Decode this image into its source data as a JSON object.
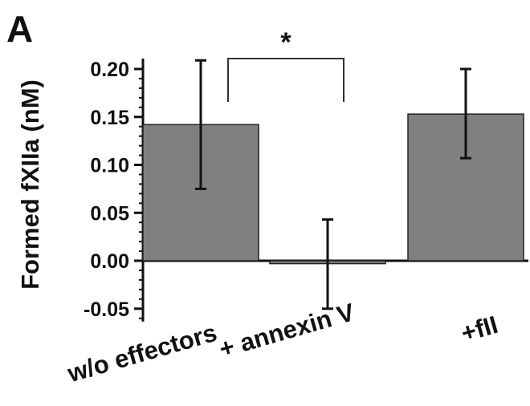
{
  "chart_data": {
    "type": "bar",
    "panel_label": "A",
    "title": "",
    "xlabel": "",
    "ylabel": "Formed fXIIa (nM)",
    "ylim": [
      -0.06,
      0.21
    ],
    "yticks": [
      -0.05,
      0.0,
      0.05,
      0.1,
      0.15,
      0.2
    ],
    "ytick_labels": [
      "-0.05",
      "0.00",
      "0.05",
      "0.10",
      "0.15",
      "0.20"
    ],
    "grid": false,
    "categories": [
      "w/o effectors",
      "+ annexin V",
      "+fII"
    ],
    "values": [
      0.142,
      -0.003,
      0.153
    ],
    "error_low": [
      0.075,
      -0.05,
      0.107
    ],
    "error_high": [
      0.209,
      0.043,
      0.2
    ],
    "bar_color": "#808080",
    "significance": {
      "from": 0,
      "to": 1,
      "label": "*"
    }
  }
}
